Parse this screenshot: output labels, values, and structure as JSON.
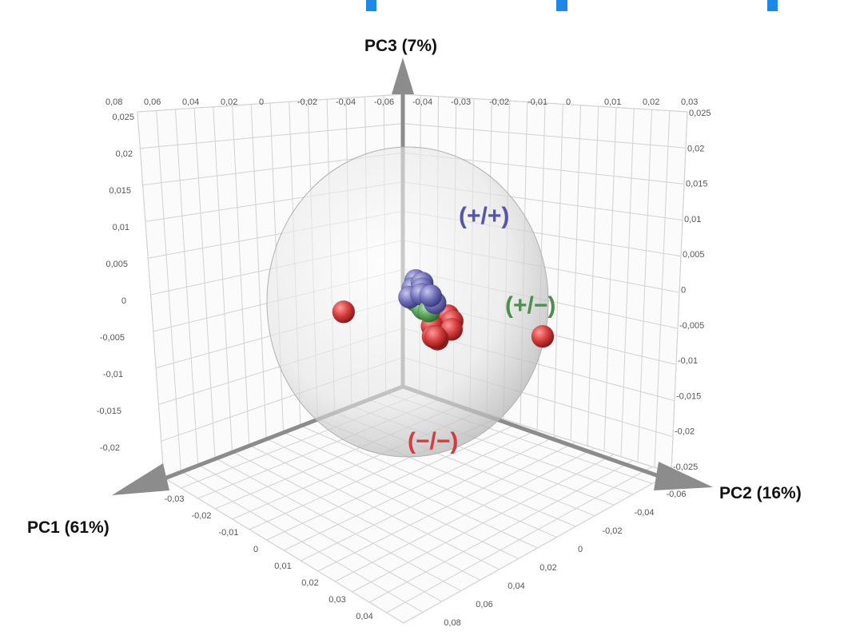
{
  "chart_data": {
    "type": "scatter",
    "dimensions": 3,
    "axes": {
      "pc1": {
        "label": "PC1  (61%)",
        "ticks": [
          "-0,03",
          "-0,02",
          "-0,01",
          "0",
          "0,01",
          "0,02",
          "0,03",
          "0,04"
        ]
      },
      "pc2": {
        "label": "PC2  (16%)",
        "ticks": [
          "-0,06",
          "-0,04",
          "-0,02",
          "0",
          "0,02",
          "0,04",
          "0,06",
          "0,08"
        ]
      },
      "pc3": {
        "label": "PC3  (7%)",
        "ticks": [
          "0,025",
          "0,02",
          "0,015",
          "0,01",
          "0,005",
          "0",
          "-0,005",
          "-0,01",
          "-0,015",
          "-0,02"
        ]
      },
      "pc3_right_ticks": [
        "0,025",
        "0,02",
        "0,015",
        "0,01",
        "0,005",
        "0",
        "-0,005",
        "-0,01",
        "-0,015",
        "-0,02",
        "-0,025"
      ],
      "back_top_ticks": [
        "0,08",
        "0,06",
        "0,04",
        "0,02",
        "0",
        "-0,02",
        "-0,04",
        "-0,06",
        "-0,04",
        "-0,03",
        "-0,02",
        "-0,01",
        "0",
        "0,01",
        "0,02",
        "0,03"
      ]
    },
    "grid": true,
    "confidence_ellipsoid": true,
    "series": [
      {
        "name": "(+/+)",
        "color": "#6f6fb8",
        "points": [
          [
            -0.0015,
            0.004,
            0.0095
          ],
          [
            0.0002,
            0.008,
            0.0105
          ],
          [
            0.0008,
            0.0085,
            0.0085
          ],
          [
            0.003,
            0.01,
            0.0075
          ],
          [
            0.004,
            0.0145,
            0.009
          ],
          [
            0.003,
            0.0155,
            0.006
          ],
          [
            0.0,
            0.004,
            0.0065
          ],
          [
            0.004,
            0.006,
            0.005
          ]
        ]
      },
      {
        "name": "(+/−)",
        "color": "#5ea55e",
        "points": [
          [
            0.001,
            0.009,
            0.0055
          ],
          [
            0.0012,
            0.01,
            0.005
          ],
          [
            0.002,
            0.013,
            0.0045
          ],
          [
            0.0,
            0.005,
            0.002
          ],
          [
            -0.001,
            0.0055,
            0.0015
          ],
          [
            0.001,
            0.0085,
            0.001
          ],
          [
            0.002,
            0.01,
            0.001
          ],
          [
            0.003,
            0.013,
            0.0015
          ]
        ]
      },
      {
        "name": "(−/−)",
        "color": "#d43c3c",
        "points": [
          [
            -0.01,
            0.01,
            -0.006
          ],
          [
            -0.006,
            0.015,
            -0.005
          ],
          [
            -0.002,
            0.018,
            -0.006
          ],
          [
            0.002,
            0.015,
            -0.009
          ],
          [
            -0.01,
            0.008,
            -0.01
          ],
          [
            0.001,
            0.013,
            -0.01
          ],
          [
            -0.001,
            0.011,
            -0.007
          ],
          [
            -0.013,
            0.007,
            -0.0115
          ],
          [
            0.0,
            0.014,
            -0.011
          ],
          [
            -0.02,
            0.04,
            -0.0065
          ],
          [
            -0.005,
            -0.028,
            -0.0175
          ]
        ]
      }
    ]
  }
}
